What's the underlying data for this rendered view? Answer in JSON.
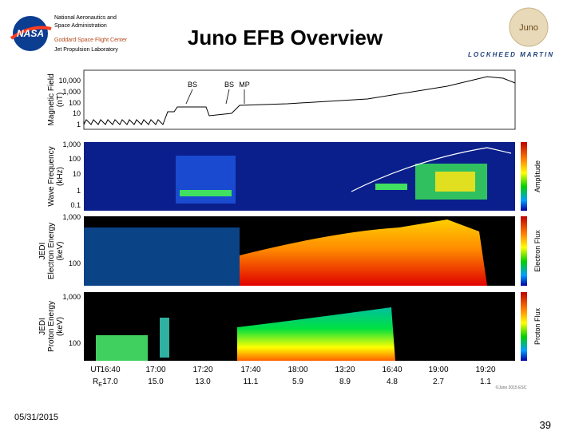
{
  "header": {
    "agency": [
      "National Aeronautics and",
      "Space Administration"
    ],
    "centers": [
      "Goddard Space Flight Center",
      "Jet Propulsion Laboratory"
    ],
    "nasa_logo": "NASA",
    "title": "Juno EFB Overview",
    "juno_logo": "Juno",
    "lockheed": "LOCKHEED MARTIN"
  },
  "figure": {
    "panels": [
      {
        "label": [
          "Magnetic Field",
          "(nT)"
        ],
        "ticks": [
          "10,000",
          "1,000",
          "100",
          "10",
          "1"
        ],
        "annotations": [
          "BS",
          "BS",
          "MP"
        ]
      },
      {
        "label": [
          "Wave Frequency",
          "(kHz)"
        ],
        "ticks": [
          "1,000",
          "100",
          "10",
          "1",
          "0.1"
        ],
        "colorbar": "Amplitude"
      },
      {
        "label": [
          "JEDI",
          "Electron Energy",
          "(keV)"
        ],
        "ticks": [
          "1,000",
          "100"
        ],
        "colorbar": "Electron Flux"
      },
      {
        "label": [
          "JEDI",
          "Proton Energy",
          "(keV)"
        ],
        "ticks": [
          "1,000",
          "100"
        ],
        "colorbar": "Proton Flux"
      }
    ],
    "time_axis": {
      "ut_label": "UT",
      "re_label": "R",
      "re_sub": "E",
      "ut": [
        "16:40",
        "17:00",
        "17:20",
        "17:40",
        "18:00",
        "13:20",
        "16:40",
        "19:00",
        "19:20"
      ],
      "re": [
        "17.0",
        "15.0",
        "13.0",
        "11.1",
        "5.9",
        "8.9",
        "4.8",
        "2.7",
        "1.1"
      ]
    },
    "credit": "©Juno 2015 ESC"
  },
  "footer": {
    "date": "05/31/2015",
    "page": "39"
  }
}
